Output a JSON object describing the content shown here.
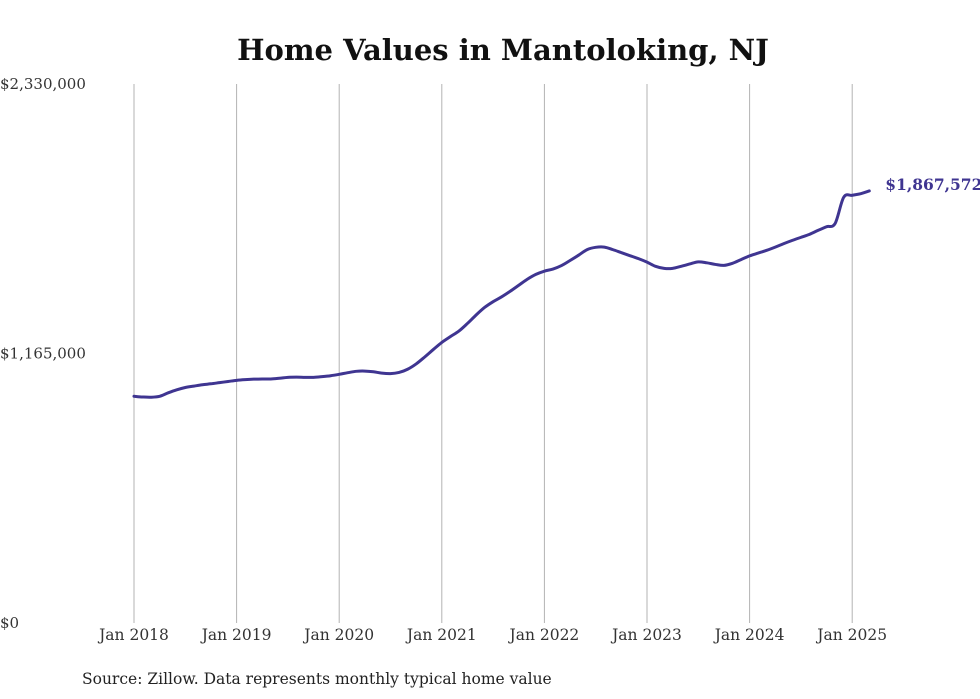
{
  "chart_data": {
    "type": "line",
    "title": "Home Values in Mantoloking, NJ",
    "xlabel": "",
    "ylabel": "",
    "ylim": [
      0,
      2330000
    ],
    "xlim": [
      "2018-01",
      "2025-03"
    ],
    "y_ticks": [
      "$0",
      "$1,165,000",
      "$2,330,000"
    ],
    "x_ticks": [
      "Jan 2018",
      "Jan 2019",
      "Jan 2020",
      "Jan 2021",
      "Jan 2022",
      "Jan 2023",
      "Jan 2024",
      "Jan 2025"
    ],
    "grid": "vertical",
    "line_color": "#3f3591",
    "end_label": "$1,867,572",
    "source": "Source: Zillow. Data represents monthly typical home value",
    "series": [
      {
        "x": [
          "2018-01",
          "2018-02",
          "2018-03",
          "2018-04",
          "2018-05",
          "2018-06",
          "2018-07",
          "2018-08",
          "2018-09",
          "2018-10",
          "2018-11",
          "2018-12",
          "2019-01",
          "2019-02",
          "2019-03",
          "2019-04",
          "2019-05",
          "2019-06",
          "2019-07",
          "2019-08",
          "2019-09",
          "2019-10",
          "2019-11",
          "2019-12",
          "2020-01",
          "2020-02",
          "2020-03",
          "2020-04",
          "2020-05",
          "2020-06",
          "2020-07",
          "2020-08",
          "2020-09",
          "2020-10",
          "2020-11",
          "2020-12",
          "2021-01",
          "2021-02",
          "2021-03",
          "2021-04",
          "2021-05",
          "2021-06",
          "2021-07",
          "2021-08",
          "2021-09",
          "2021-10",
          "2021-11",
          "2021-12",
          "2022-01",
          "2022-02",
          "2022-03",
          "2022-04",
          "2022-05",
          "2022-06",
          "2022-07",
          "2022-08",
          "2022-09",
          "2022-10",
          "2022-11",
          "2022-12",
          "2023-01",
          "2023-02",
          "2023-03",
          "2023-04",
          "2023-05",
          "2023-06",
          "2023-07",
          "2023-08",
          "2023-09",
          "2023-10",
          "2023-11",
          "2023-12",
          "2024-01",
          "2024-02",
          "2024-03",
          "2024-04",
          "2024-05",
          "2024-06",
          "2024-07",
          "2024-08",
          "2024-09",
          "2024-10",
          "2024-11",
          "2024-12",
          "2025-01",
          "2025-02",
          "2025-03"
        ],
        "values": [
          980000,
          977000,
          976000,
          980000,
          995000,
          1008000,
          1018000,
          1024000,
          1030000,
          1034000,
          1039000,
          1044000,
          1049000,
          1052000,
          1054000,
          1055000,
          1055000,
          1058000,
          1062000,
          1063000,
          1062000,
          1062000,
          1065000,
          1069000,
          1075000,
          1082000,
          1088000,
          1089000,
          1086000,
          1080000,
          1078000,
          1083000,
          1097000,
          1120000,
          1150000,
          1182000,
          1213000,
          1238000,
          1262000,
          1295000,
          1331000,
          1364000,
          1389000,
          1410000,
          1434000,
          1460000,
          1486000,
          1507000,
          1521000,
          1530000,
          1545000,
          1567000,
          1590000,
          1614000,
          1624000,
          1625000,
          1614000,
          1601000,
          1588000,
          1575000,
          1560000,
          1542000,
          1533000,
          1533000,
          1542000,
          1552000,
          1561000,
          1557000,
          1550000,
          1546000,
          1555000,
          1571000,
          1587000,
          1599000,
          1611000,
          1625000,
          1640000,
          1654000,
          1667000,
          1680000,
          1697000,
          1713000,
          1727000,
          1840000,
          1849000,
          1856000,
          1867572
        ]
      }
    ]
  }
}
